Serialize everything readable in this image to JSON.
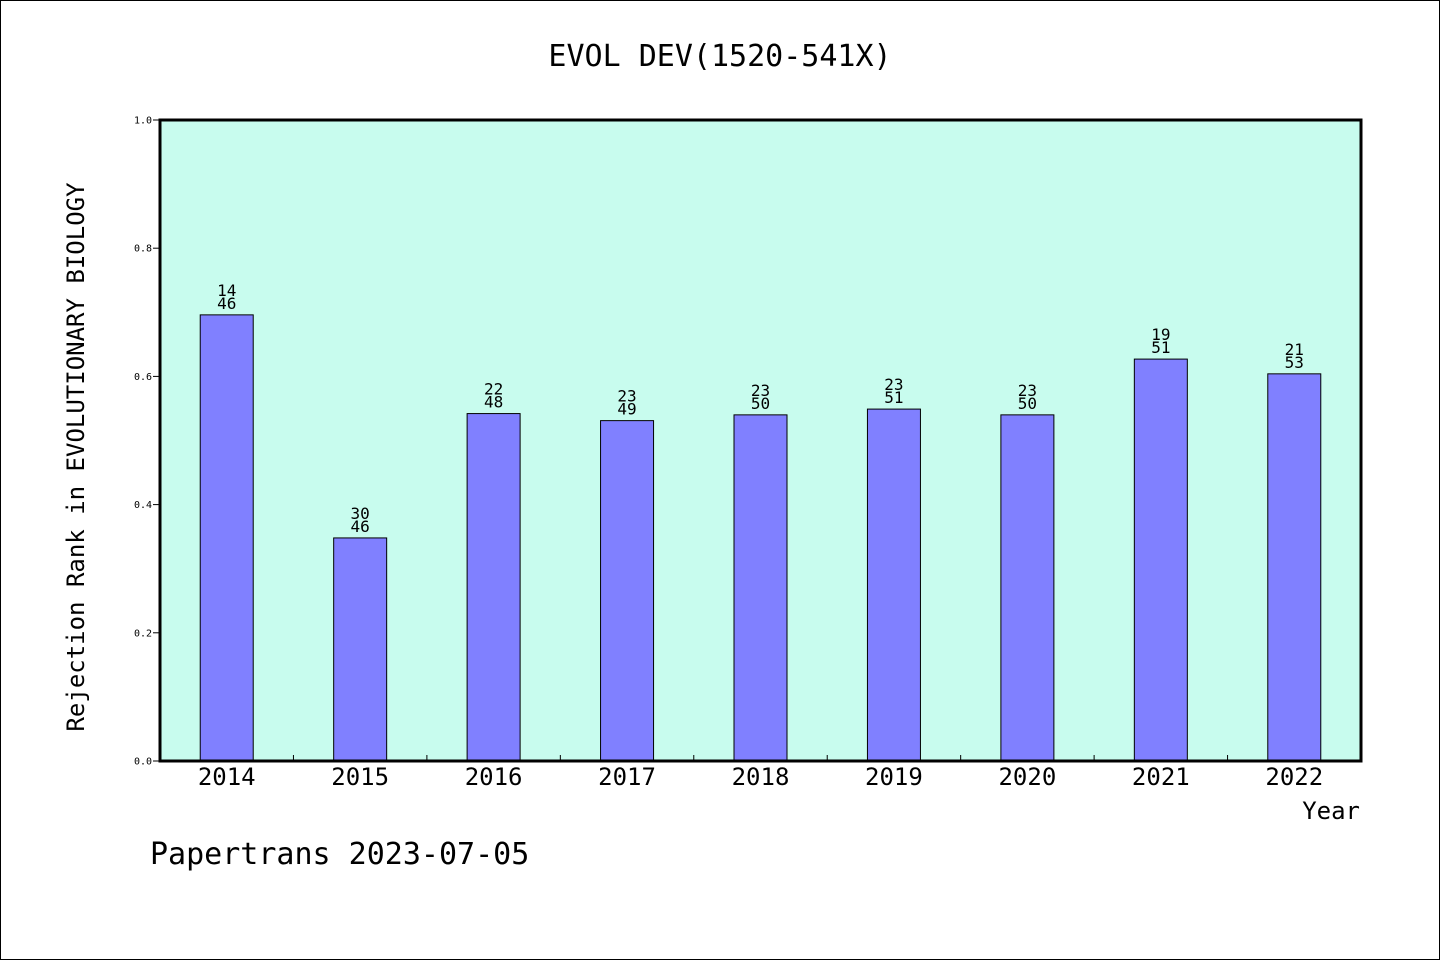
{
  "chart_data": {
    "type": "bar",
    "title": "EVOL DEV(1520-541X)",
    "xlabel": "Year",
    "ylabel": "Rejection Rank in EVOLUTIONARY BIOLOGY",
    "categories": [
      "2014",
      "2015",
      "2016",
      "2017",
      "2018",
      "2019",
      "2020",
      "2021",
      "2022"
    ],
    "values": [
      0.696,
      0.348,
      0.542,
      0.531,
      0.54,
      0.549,
      0.54,
      0.627,
      0.604
    ],
    "labels_top": [
      "14",
      "30",
      "22",
      "23",
      "23",
      "23",
      "23",
      "19",
      "21"
    ],
    "labels_bottom": [
      "46",
      "46",
      "48",
      "49",
      "50",
      "51",
      "50",
      "51",
      "53"
    ],
    "ylim": [
      0,
      1.0
    ],
    "yticks": [
      "0.0",
      "0.2",
      "0.4",
      "0.6",
      "0.8",
      "1.0"
    ],
    "grid": false,
    "colors": {
      "plot_bg": "#c8fcee",
      "bar": "#8080ff",
      "bar_edge": "#000000"
    }
  },
  "footer": "Papertrans 2023-07-05"
}
